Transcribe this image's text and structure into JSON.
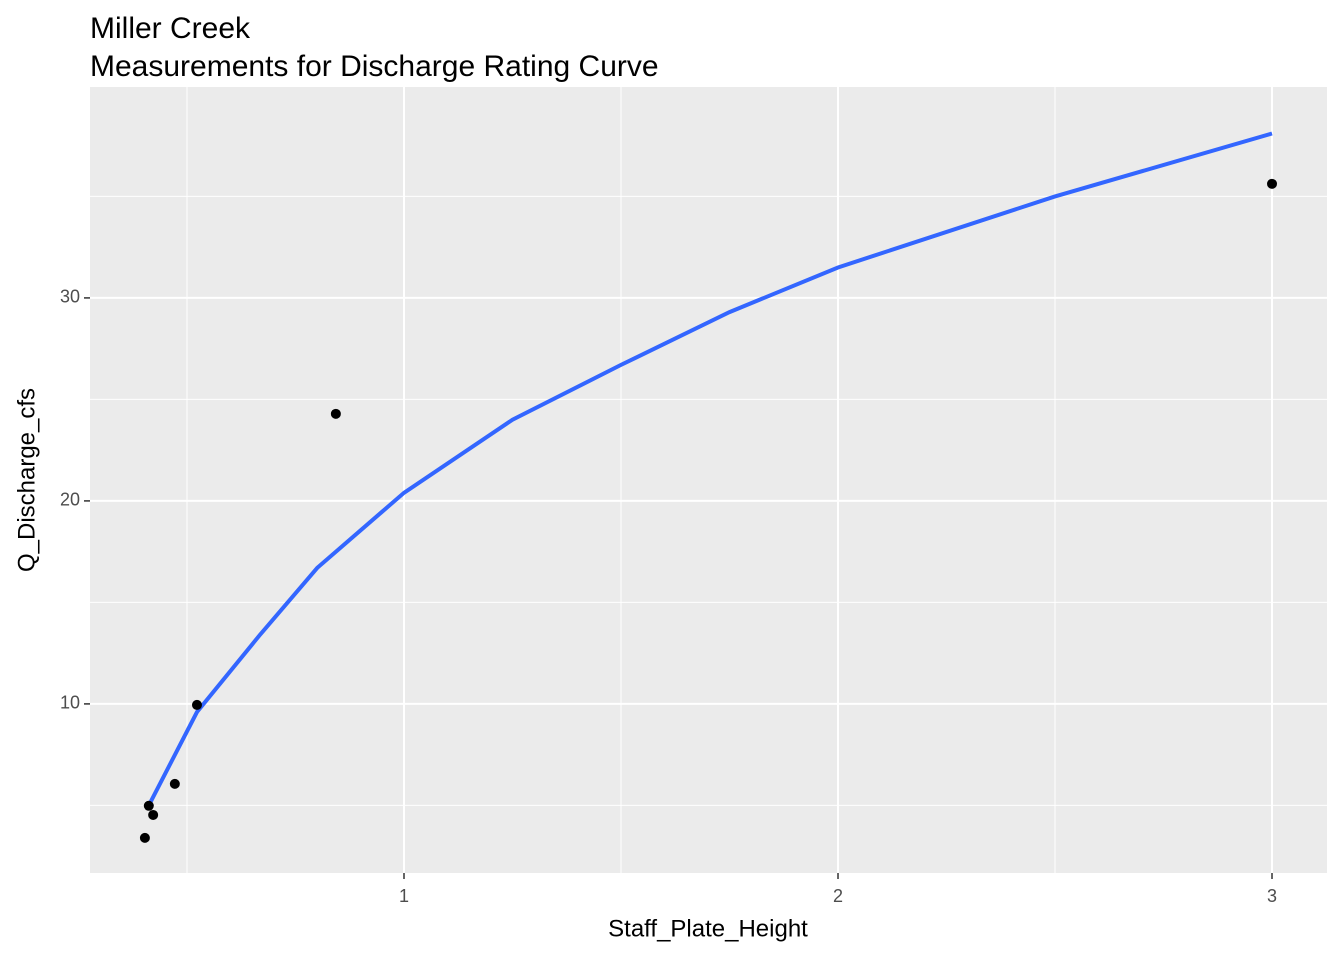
{
  "chart_data": {
    "type": "scatter",
    "title": "Miller Creek",
    "subtitle": "Measurements for Discharge Rating Curve",
    "x_label": "Staff_Plate_Height",
    "y_label": "Q_Discharge_cfs",
    "points": {
      "color": "#000000",
      "x": [
        0.403,
        0.412,
        0.422,
        0.472,
        0.523,
        0.843,
        3.0
      ],
      "y": [
        3.4,
        4.98,
        4.53,
        6.06,
        9.95,
        24.29,
        35.62
      ]
    },
    "fit": {
      "color": "#3366ff",
      "x": [
        0.412,
        0.523,
        0.668,
        0.8,
        1.0,
        1.25,
        1.5,
        1.75,
        2.0,
        2.5,
        3.0
      ],
      "y": [
        5.0,
        9.6,
        13.4,
        16.7,
        20.4,
        24.0,
        26.7,
        29.3,
        31.5,
        35.0,
        38.1
      ]
    },
    "xlim": [
      0.2765,
      3.1267
    ],
    "ylim": [
      1.67,
      40.39
    ],
    "xticks": [
      1,
      2,
      3
    ],
    "yticks": [
      10,
      20,
      30
    ],
    "x_minor_ticks": [
      0.5,
      1.5,
      2.5
    ],
    "y_minor_ticks": [
      5,
      15,
      25,
      35
    ],
    "grid": true
  }
}
